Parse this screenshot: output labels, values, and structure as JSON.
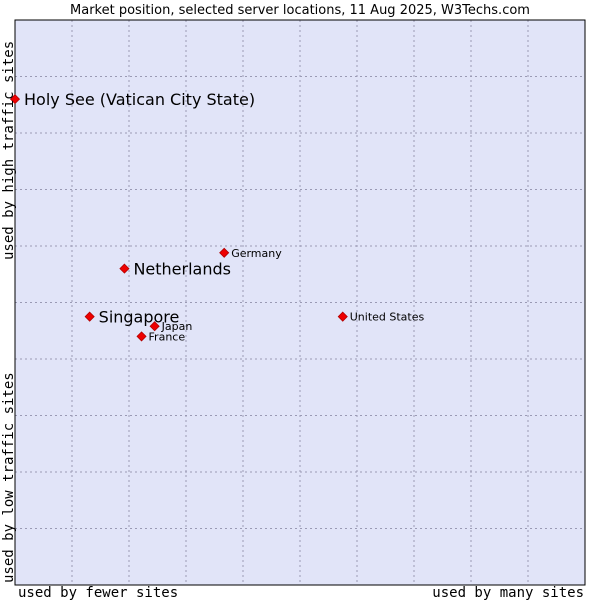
{
  "chart_data": {
    "type": "scatter",
    "title": "Market position, selected server locations, 11 Aug 2025, W3Techs.com",
    "xlabel_left": "used by fewer sites",
    "xlabel_right": "used by many sites",
    "ylabel_bottom": "used by low traffic sites",
    "ylabel_top": "used by high traffic sites",
    "xlim": [
      0,
      100
    ],
    "ylim": [
      0,
      100
    ],
    "grid": true,
    "points": [
      {
        "name": "Holy See (Vatican City State)",
        "x": 0.0,
        "y": 86.0,
        "emphasis": true
      },
      {
        "name": "Netherlands",
        "x": 19.2,
        "y": 56.0,
        "emphasis": true
      },
      {
        "name": "Singapore",
        "x": 13.1,
        "y": 47.5,
        "emphasis": true
      },
      {
        "name": "Germany",
        "x": 36.7,
        "y": 58.8,
        "emphasis": false
      },
      {
        "name": "Japan",
        "x": 24.5,
        "y": 45.8,
        "emphasis": false
      },
      {
        "name": "France",
        "x": 22.2,
        "y": 44.0,
        "emphasis": false
      },
      {
        "name": "United States",
        "x": 57.5,
        "y": 47.5,
        "emphasis": false
      }
    ],
    "colors": {
      "plot_background": "#e1e4f8",
      "point": "#ee0000",
      "grid": "#9a9ab4",
      "frame": "#000000"
    }
  }
}
